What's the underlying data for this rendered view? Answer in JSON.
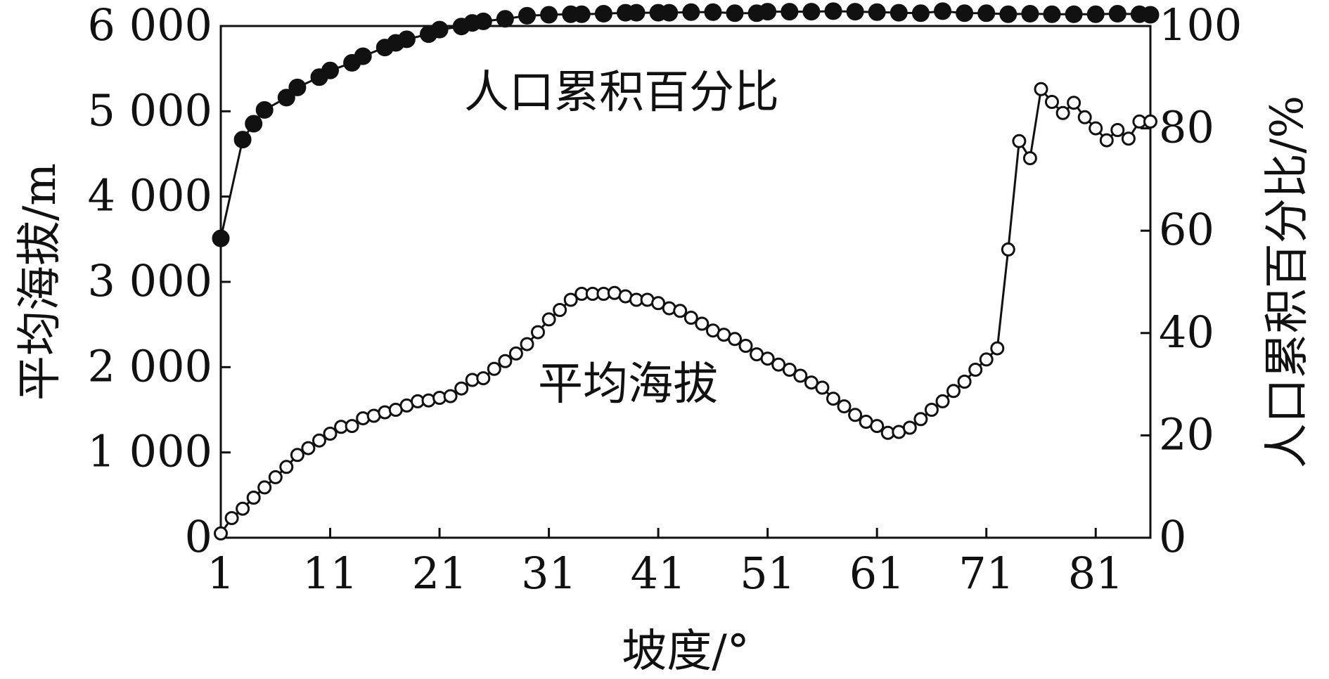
{
  "chart_data": {
    "type": "line",
    "xlabel": "坡度/°",
    "ylabel_left": "平均海拔/m",
    "ylabel_right": "人口累积百分比/%",
    "x_ticks": [
      "1",
      "11",
      "21",
      "31",
      "41",
      "51",
      "61",
      "71",
      "81"
    ],
    "y_left_ticks": [
      "0",
      "1 000",
      "2 000",
      "3 000",
      "4 000",
      "5 000",
      "6 000"
    ],
    "y_right_ticks": [
      "0",
      "20",
      "40",
      "60",
      "80",
      "100"
    ],
    "xlim": [
      1,
      86
    ],
    "ylim_left": [
      0,
      6000
    ],
    "ylim_right": [
      0,
      100
    ],
    "series": [
      {
        "name": "人口累积百分比",
        "axis": "right",
        "marker": "filled-circle",
        "x": [
          1,
          3,
          4,
          5,
          7,
          8,
          10,
          11,
          13,
          14,
          16,
          17,
          18,
          20,
          21,
          23,
          24,
          25,
          27,
          29,
          31,
          33,
          34,
          36,
          38,
          39,
          41,
          42,
          44,
          46,
          48,
          50,
          51,
          53,
          55,
          57,
          59,
          61,
          63,
          65,
          67,
          69,
          71,
          73,
          75,
          77,
          79,
          81,
          83,
          85,
          86
        ],
        "values": [
          58.5,
          77.8,
          80.9,
          83.6,
          86.0,
          88.0,
          90.0,
          91.3,
          92.8,
          94.1,
          95.8,
          96.7,
          97.4,
          98.4,
          99.3,
          99.9,
          100.6,
          100.9,
          101.4,
          102.0,
          102.2,
          102.3,
          102.3,
          102.4,
          102.6,
          102.6,
          102.6,
          102.6,
          102.7,
          102.7,
          102.5,
          102.5,
          102.8,
          102.8,
          102.8,
          102.9,
          102.8,
          102.7,
          102.6,
          102.5,
          102.9,
          102.5,
          102.5,
          102.3,
          102.4,
          102.3,
          102.3,
          102.3,
          102.4,
          102.3,
          102.2
        ]
      },
      {
        "name": "平均海拔",
        "axis": "left",
        "marker": "hollow-circle",
        "x": [
          1,
          2,
          3,
          4,
          5,
          6,
          7,
          8,
          9,
          10,
          11,
          12,
          13,
          14,
          15,
          16,
          17,
          18,
          19,
          20,
          21,
          22,
          23,
          24,
          25,
          26,
          27,
          28,
          29,
          30,
          31,
          32,
          33,
          34,
          35,
          36,
          37,
          38,
          39,
          40,
          41,
          42,
          43,
          44,
          45,
          46,
          47,
          48,
          49,
          50,
          51,
          52,
          53,
          54,
          55,
          56,
          57,
          58,
          59,
          60,
          61,
          62,
          63,
          64,
          65,
          66,
          67,
          68,
          69,
          70,
          71,
          72,
          73,
          74,
          75,
          76,
          77,
          78,
          79,
          80,
          81,
          82,
          83,
          84,
          85,
          86
        ],
        "values": [
          50,
          230,
          340,
          470,
          590,
          710,
          830,
          970,
          1050,
          1140,
          1220,
          1300,
          1310,
          1400,
          1430,
          1470,
          1500,
          1550,
          1600,
          1610,
          1640,
          1660,
          1750,
          1850,
          1870,
          1980,
          2070,
          2160,
          2270,
          2410,
          2560,
          2670,
          2790,
          2860,
          2860,
          2860,
          2870,
          2830,
          2790,
          2790,
          2750,
          2690,
          2660,
          2580,
          2510,
          2430,
          2380,
          2330,
          2250,
          2150,
          2100,
          2030,
          1970,
          1900,
          1820,
          1760,
          1630,
          1540,
          1440,
          1360,
          1310,
          1230,
          1240,
          1290,
          1390,
          1500,
          1600,
          1720,
          1830,
          1970,
          2090,
          2220,
          3380,
          4650,
          4450,
          5260,
          5110,
          4980,
          5100,
          4930,
          4800,
          4660,
          4780,
          4680,
          4880,
          4880
        ]
      }
    ]
  }
}
